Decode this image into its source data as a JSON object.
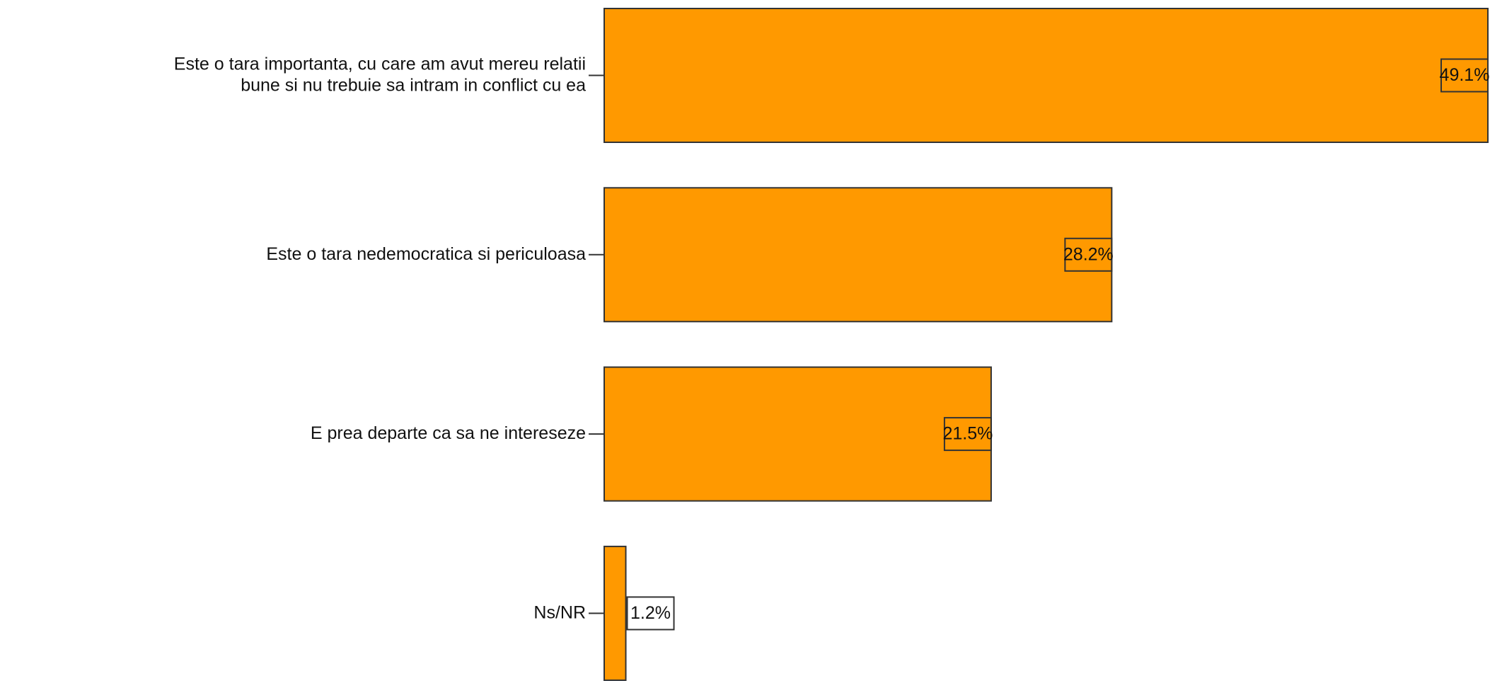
{
  "chart_data": {
    "type": "hbar",
    "categories": [
      "Este o tara importanta, cu care am avut mereu relatii\nbune si nu trebuie sa intram in conflict cu ea",
      "Este o tara nedemocratica si periculoasa",
      "E prea departe ca sa ne intereseze",
      "Ns/NR"
    ],
    "values": [
      49.1,
      28.2,
      21.5,
      1.2
    ],
    "value_labels": [
      "49.1%",
      "28.2%",
      "21.5%",
      "1.2%"
    ],
    "color": "#ff9900"
  }
}
